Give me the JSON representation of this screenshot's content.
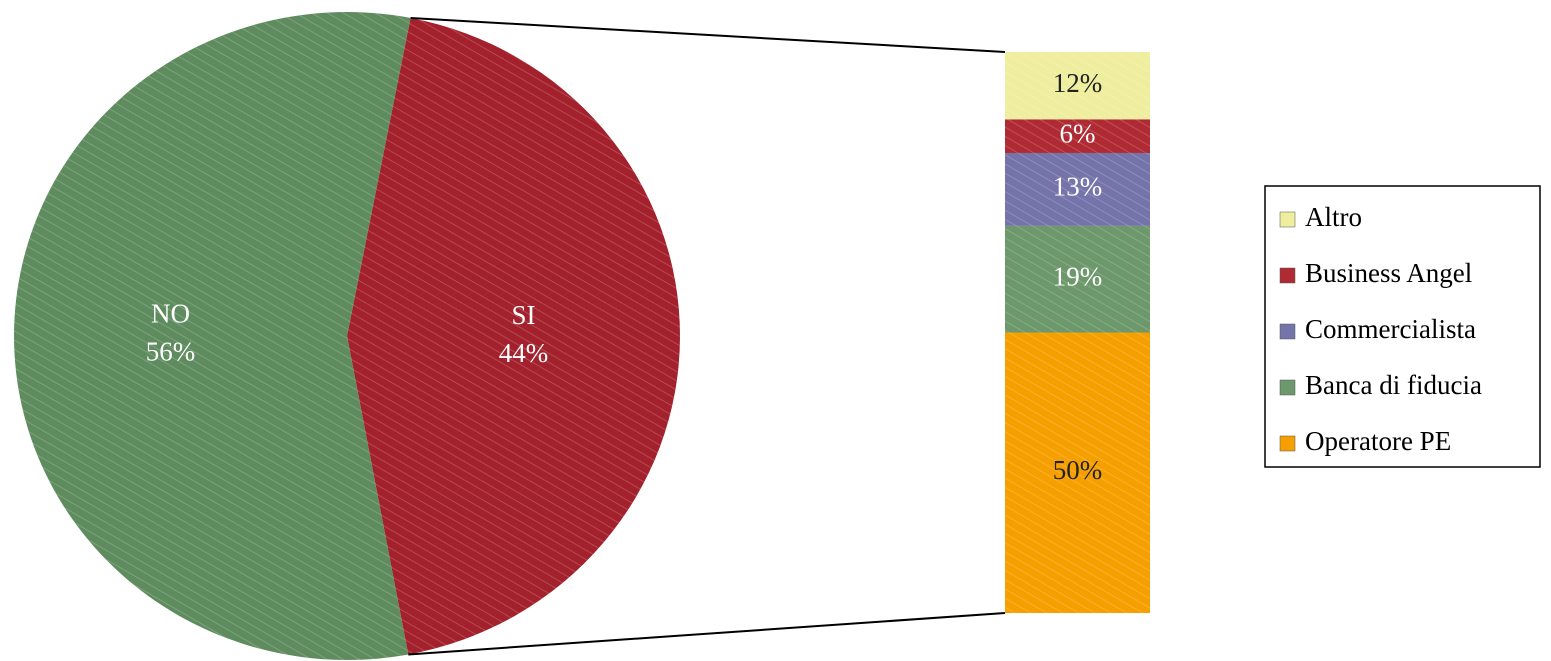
{
  "chart_data": [
    {
      "type": "pie",
      "categories": [
        "SI",
        "NO"
      ],
      "values": [
        44,
        56
      ],
      "value_labels": [
        "44%",
        "56%"
      ],
      "colors": [
        "#a3212c",
        "#5f8c5f"
      ]
    },
    {
      "type": "bar",
      "categories": [
        "Altro",
        "Business Angel",
        "Commercialista",
        "Banca di fiducia",
        "Operatore PE"
      ],
      "values": [
        12,
        6,
        13,
        19,
        50
      ],
      "value_labels": [
        "12%",
        "6%",
        "13%",
        "19%",
        "50%"
      ],
      "colors": [
        "#eeee9e",
        "#b02a33",
        "#7474aa",
        "#6c986c",
        "#f5a000"
      ],
      "legend": "right"
    }
  ]
}
